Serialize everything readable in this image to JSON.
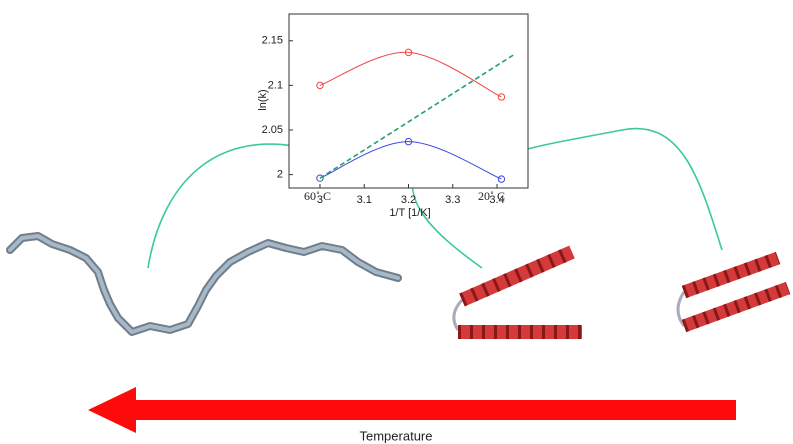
{
  "chart_data": {
    "type": "line",
    "xlabel": "1/T [1/K]",
    "ylabel": "ln(k)",
    "xlim": [
      2.93,
      3.47
    ],
    "xticks": [
      3,
      3.1,
      3.2,
      3.3,
      3.4
    ],
    "ylim": [
      1.985,
      2.18
    ],
    "yticks": [
      2,
      2.05,
      2.1,
      2.15
    ],
    "series": [
      {
        "color": "#f04848",
        "style": "solid",
        "markers": true,
        "x": [
          3.0,
          3.2,
          3.41
        ],
        "values": [
          2.1,
          2.137,
          2.087
        ]
      },
      {
        "color": "#3a46e0",
        "style": "solid",
        "markers": true,
        "x": [
          3.0,
          3.2,
          3.41
        ],
        "values": [
          1.996,
          2.037,
          1.995
        ]
      },
      {
        "color": "#22a070",
        "style": "dashed",
        "markers": false,
        "x": [
          3.0,
          3.44
        ],
        "values": [
          1.996,
          2.135
        ]
      }
    ],
    "annotations": [
      "60˚ C",
      "20˚ C"
    ]
  },
  "figure": {
    "arrow_label": "Temperature"
  }
}
